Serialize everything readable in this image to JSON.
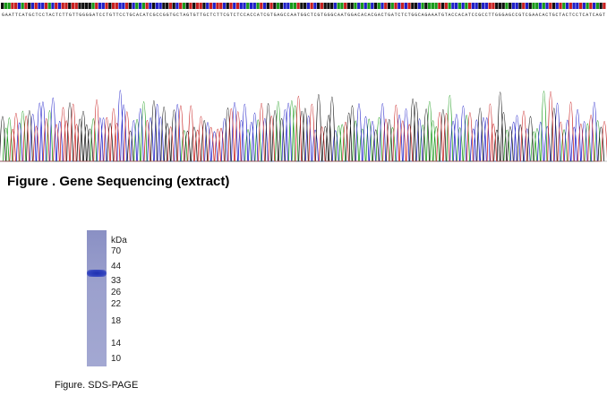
{
  "sequence_strip": {
    "text": "GAATTCATGCTCCTACTCTTGTTGGGGATCCTGTTCCTGCACATCGCCGGTGCTAGTGTTGCTCTTCGTCTCCACCATCGTGAGCCAATGGCTCGTGGGCAATGGACACACGACTGATCTCTGGCAGAAATGTACCACATCCGCCTTGGGAGCCGTCGAACACTGCTACTCCTCATCAGT"
  },
  "figure1": {
    "caption": "Figure . Gene Sequencing (extract)"
  },
  "figure2": {
    "caption": "Figure. SDS-PAGE",
    "unit_label": "kDa",
    "markers": [
      {
        "value": "70"
      },
      {
        "value": "44"
      },
      {
        "value": "33"
      },
      {
        "value": "26"
      },
      {
        "value": "22"
      },
      {
        "value": "18"
      },
      {
        "value": "14"
      },
      {
        "value": "10"
      }
    ]
  },
  "colors": {
    "A": "#1a9a1a",
    "C": "#2020c8",
    "G": "#111111",
    "T": "#c82020"
  }
}
